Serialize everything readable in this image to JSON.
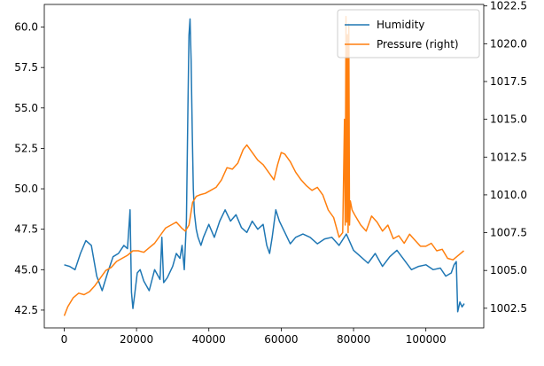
{
  "chart_data": {
    "type": "line",
    "xlim": [
      -5500,
      116000
    ],
    "ylim_left": [
      41.4,
      61.4
    ],
    "ylim_right": [
      1001.2,
      1022.6
    ],
    "grid": false,
    "legend_placement": "top-right",
    "x_ticks": [
      0,
      20000,
      40000,
      60000,
      80000,
      100000
    ],
    "x_tick_labels": [
      "0",
      "20000",
      "40000",
      "60000",
      "80000",
      "100000"
    ],
    "y_left_ticks": [
      42.5,
      45.0,
      47.5,
      50.0,
      52.5,
      55.0,
      57.5,
      60.0
    ],
    "y_left_tick_labels": [
      "42.5",
      "45.0",
      "47.5",
      "50.0",
      "52.5",
      "55.0",
      "57.5",
      "60.0"
    ],
    "y_right_ticks": [
      1002.5,
      1005.0,
      1007.5,
      1010.0,
      1012.5,
      1015.0,
      1017.5,
      1020.0,
      1022.5
    ],
    "y_right_tick_labels": [
      "1002.5",
      "1005.0",
      "1007.5",
      "1010.0",
      "1012.5",
      "1015.0",
      "1017.5",
      "1020.0",
      "1022.5"
    ],
    "series": [
      {
        "name": "Humidity",
        "axis": "left",
        "color": "#1f77b4",
        "x": [
          0,
          1500,
          3000,
          4500,
          6000,
          7500,
          9000,
          10500,
          12000,
          13500,
          15000,
          16500,
          17500,
          18200,
          18600,
          19000,
          19500,
          20200,
          21000,
          22000,
          23500,
          25000,
          26500,
          27000,
          27500,
          28500,
          30000,
          31000,
          32000,
          32600,
          33200,
          33800,
          34200,
          34500,
          34800,
          35100,
          35400,
          35700,
          36000,
          36500,
          37000,
          37800,
          38500,
          40000,
          41500,
          43000,
          44500,
          46000,
          47500,
          49000,
          50500,
          52000,
          53500,
          55000,
          56000,
          56800,
          57500,
          58500,
          59500,
          61000,
          62500,
          64000,
          66000,
          68000,
          70000,
          72000,
          74000,
          76000,
          78000,
          80000,
          82000,
          84000,
          86000,
          88000,
          90000,
          92000,
          94000,
          96000,
          98000,
          100000,
          102000,
          104000,
          105500,
          107000,
          107800,
          108400,
          108800,
          109400,
          110000,
          110600
        ],
        "values": [
          45.3,
          45.2,
          45.0,
          46.0,
          46.8,
          46.5,
          44.6,
          43.7,
          44.8,
          45.8,
          46.0,
          46.5,
          46.3,
          48.7,
          43.6,
          42.6,
          43.5,
          44.8,
          45.0,
          44.3,
          43.7,
          45.0,
          44.4,
          47.0,
          44.2,
          44.5,
          45.2,
          46.0,
          45.7,
          46.5,
          45.0,
          48.0,
          55.0,
          59.5,
          60.5,
          58.0,
          53.5,
          50.0,
          48.5,
          47.5,
          47.0,
          46.5,
          47.0,
          47.8,
          47.0,
          48.0,
          48.7,
          48.0,
          48.4,
          47.6,
          47.3,
          48.0,
          47.5,
          47.8,
          46.5,
          46.0,
          47.0,
          48.7,
          48.0,
          47.3,
          46.6,
          47.0,
          47.2,
          47.0,
          46.6,
          46.9,
          47.0,
          46.5,
          47.2,
          46.2,
          45.8,
          45.4,
          46.0,
          45.2,
          45.8,
          46.2,
          45.6,
          45.0,
          45.2,
          45.3,
          45.0,
          45.1,
          44.6,
          44.8,
          45.3,
          45.5,
          42.4,
          43.0,
          42.7,
          42.9
        ]
      },
      {
        "name": "Pressure (right)",
        "axis": "right",
        "color": "#ff7f0e",
        "x": [
          0,
          1000,
          2500,
          4000,
          5500,
          7000,
          8500,
          10000,
          11500,
          13000,
          14500,
          16000,
          17500,
          19000,
          20500,
          22000,
          23500,
          25000,
          26500,
          28000,
          29500,
          31000,
          32500,
          33500,
          34500,
          35500,
          36500,
          37500,
          39000,
          40500,
          42000,
          43500,
          45000,
          46500,
          48000,
          49500,
          50500,
          52000,
          53500,
          55000,
          56500,
          58000,
          59000,
          60000,
          61000,
          62500,
          64000,
          65500,
          67000,
          68500,
          70000,
          71500,
          73000,
          74500,
          76000,
          77000,
          77500,
          77700,
          77900,
          78100,
          78300,
          78500,
          78700,
          78900,
          79100,
          79600,
          80500,
          82000,
          83500,
          85000,
          86500,
          88000,
          89500,
          91000,
          92500,
          94000,
          95500,
          97000,
          98500,
          100000,
          101500,
          103000,
          104500,
          106000,
          107500,
          109000,
          110500
        ],
        "values": [
          1002.0,
          1002.6,
          1003.2,
          1003.5,
          1003.4,
          1003.6,
          1004.0,
          1004.5,
          1005.0,
          1005.2,
          1005.6,
          1005.8,
          1006.0,
          1006.3,
          1006.3,
          1006.2,
          1006.5,
          1006.8,
          1007.3,
          1007.8,
          1008.0,
          1008.2,
          1007.8,
          1007.6,
          1008.0,
          1009.5,
          1009.9,
          1010.0,
          1010.1,
          1010.3,
          1010.5,
          1011.0,
          1011.8,
          1011.7,
          1012.1,
          1013.0,
          1013.3,
          1012.8,
          1012.3,
          1012.0,
          1011.5,
          1011.0,
          1012.0,
          1012.8,
          1012.7,
          1012.2,
          1011.5,
          1011.0,
          1010.6,
          1010.3,
          1010.5,
          1010.0,
          1009.0,
          1008.5,
          1007.2,
          1007.5,
          1015.0,
          1008.0,
          1021.8,
          1008.2,
          1020.6,
          1007.5,
          1021.3,
          1008.0,
          1009.6,
          1009.0,
          1008.6,
          1008.0,
          1007.6,
          1008.6,
          1008.2,
          1007.6,
          1008.0,
          1007.1,
          1007.3,
          1006.8,
          1007.4,
          1007.0,
          1006.6,
          1006.6,
          1006.8,
          1006.3,
          1006.4,
          1005.8,
          1005.7,
          1006.0,
          1006.3
        ]
      }
    ]
  }
}
